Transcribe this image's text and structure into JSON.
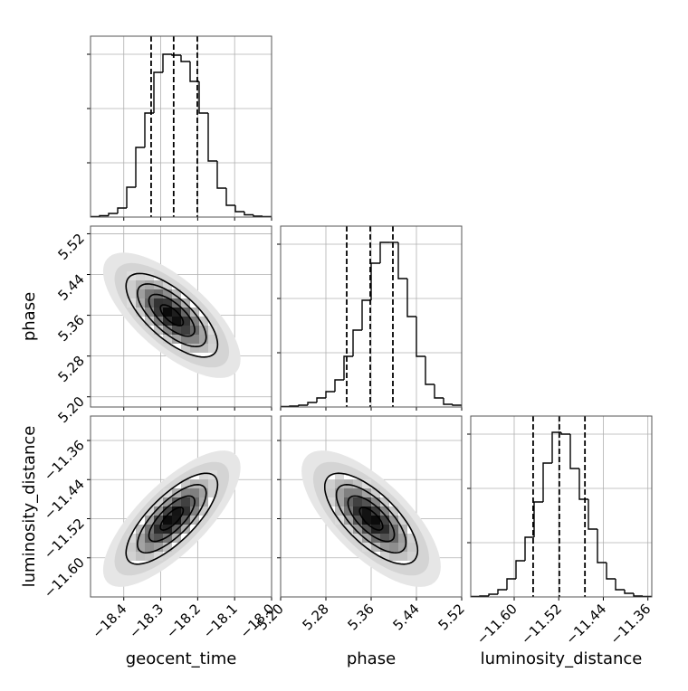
{
  "chart_data": [
    {
      "type": "histogram",
      "grid": true,
      "color": "#000000",
      "bins": [
        -18.49,
        -18.4655,
        -18.441,
        -18.4165,
        -18.392,
        -18.3675,
        -18.343,
        -18.3185,
        -18.294,
        -18.2695,
        -18.245,
        -18.2205,
        -18.196,
        -18.1715,
        -18.147,
        -18.1225,
        -18.098,
        -18.0735,
        -18.049,
        -18.0245,
        -18.0
      ],
      "values": [
        5,
        15,
        40,
        100,
        330,
        770,
        1150,
        1600,
        1800,
        1790,
        1720,
        1500,
        1150,
        620,
        320,
        130,
        60,
        25,
        10,
        5
      ],
      "quantiles": [
        -18.326,
        -18.265,
        -18.201
      ],
      "xlim": [
        -18.49,
        -18.0
      ],
      "xticks": [
        -18.4,
        -18.3,
        -18.2,
        -18.1,
        -18.0
      ],
      "ylim": [
        0,
        2000
      ],
      "yticks": [
        600,
        1200,
        1800
      ]
    },
    {
      "type": "density",
      "grid": true,
      "color": "#000000",
      "mean": [
        -18.27,
        5.36
      ],
      "sigma": [
        0.062,
        0.041
      ],
      "correlation": -0.7,
      "levels": [
        0.5,
        1,
        1.5,
        2
      ],
      "xlim": [
        -18.49,
        -18.0
      ],
      "xticks": [
        -18.4,
        -18.3,
        -18.2,
        -18.1,
        -18.0
      ],
      "ylim": [
        5.18,
        5.535
      ],
      "yticks": [
        {
          "value": 5.2,
          "label": "5.20"
        },
        {
          "value": 5.28,
          "label": "5.28"
        },
        {
          "value": 5.36,
          "label": "5.36"
        },
        {
          "value": 5.44,
          "label": "5.44"
        },
        {
          "value": 5.52,
          "label": "5.52"
        }
      ],
      "ylabel": "phase"
    },
    {
      "type": "histogram",
      "grid": true,
      "color": "#000000",
      "bins": [
        5.2,
        5.216,
        5.232,
        5.248,
        5.264,
        5.28,
        5.296,
        5.312,
        5.328,
        5.344,
        5.36,
        5.376,
        5.392,
        5.408,
        5.424,
        5.44,
        5.456,
        5.472,
        5.488,
        5.504,
        5.52
      ],
      "values": [
        5,
        10,
        20,
        50,
        100,
        170,
        300,
        560,
        850,
        1180,
        1590,
        1820,
        1820,
        1420,
        1000,
        560,
        250,
        100,
        30,
        20
      ],
      "quantiles": [
        5.3168,
        5.3584,
        5.3984
      ],
      "xlim": [
        5.2,
        5.52
      ],
      "xticks": [
        5.2,
        5.28,
        5.36,
        5.44,
        5.52
      ],
      "ylim": [
        0,
        2000
      ],
      "yticks": [
        600,
        1200,
        1800
      ]
    },
    {
      "type": "density",
      "grid": true,
      "color": "#000000",
      "mean": [
        -18.27,
        -11.52
      ],
      "sigma": [
        0.062,
        0.0465
      ],
      "correlation": 0.75,
      "levels": [
        0.5,
        1,
        1.5,
        2
      ],
      "xlim": [
        -18.49,
        -18.0
      ],
      "xticks": [
        {
          "value": -18.4,
          "label": "−18.4"
        },
        {
          "value": -18.3,
          "label": "−18.3"
        },
        {
          "value": -18.2,
          "label": "−18.2"
        },
        {
          "value": -18.1,
          "label": "−18.1"
        },
        {
          "value": -18.0,
          "label": "−18.0"
        }
      ],
      "ylim": [
        -11.68,
        -11.31
      ],
      "yticks": [
        {
          "value": -11.6,
          "label": "−11.60"
        },
        {
          "value": -11.52,
          "label": "−11.52"
        },
        {
          "value": -11.44,
          "label": "−11.44"
        },
        {
          "value": -11.36,
          "label": "−11.36"
        }
      ],
      "xlabel": "geocent_time",
      "ylabel": "luminosity_distance"
    },
    {
      "type": "density",
      "grid": true,
      "color": "#000000",
      "mean": [
        5.36,
        -11.52
      ],
      "sigma": [
        0.041,
        0.0465
      ],
      "correlation": -0.7,
      "levels": [
        0.5,
        1,
        1.5,
        2
      ],
      "xlim": [
        5.2,
        5.52
      ],
      "xticks": [
        {
          "value": 5.2,
          "label": "5.20"
        },
        {
          "value": 5.28,
          "label": "5.28"
        },
        {
          "value": 5.36,
          "label": "5.36"
        },
        {
          "value": 5.44,
          "label": "5.44"
        },
        {
          "value": 5.52,
          "label": "5.52"
        }
      ],
      "ylim": [
        -11.68,
        -11.31
      ],
      "yticks": [
        -11.6,
        -11.52,
        -11.44,
        -11.36
      ],
      "xlabel": "phase"
    },
    {
      "type": "histogram",
      "grid": true,
      "color": "#000000",
      "bins": [
        -11.678,
        -11.66175,
        -11.6455,
        -11.62925,
        -11.613,
        -11.59675,
        -11.5805,
        -11.56425,
        -11.548,
        -11.53175,
        -11.5155,
        -11.49925,
        -11.483,
        -11.46675,
        -11.4505,
        -11.43425,
        -11.418,
        -11.40175,
        -11.3855,
        -11.36925,
        -11.353
      ],
      "values": [
        5,
        10,
        30,
        80,
        200,
        400,
        660,
        1050,
        1480,
        1820,
        1800,
        1420,
        1080,
        750,
        380,
        200,
        80,
        40,
        10,
        5
      ],
      "quantiles": [
        -11.566,
        -11.519,
        -11.473
      ],
      "xlim": [
        -11.678,
        -11.353
      ],
      "xticks": [
        {
          "value": -11.6,
          "label": "−11.60"
        },
        {
          "value": -11.52,
          "label": "−11.52"
        },
        {
          "value": -11.44,
          "label": "−11.44"
        },
        {
          "value": -11.36,
          "label": "−11.36"
        }
      ],
      "ylim": [
        0,
        2000
      ],
      "yticks": [
        600,
        1200,
        1800
      ],
      "xlabel": "luminosity_distance"
    }
  ]
}
